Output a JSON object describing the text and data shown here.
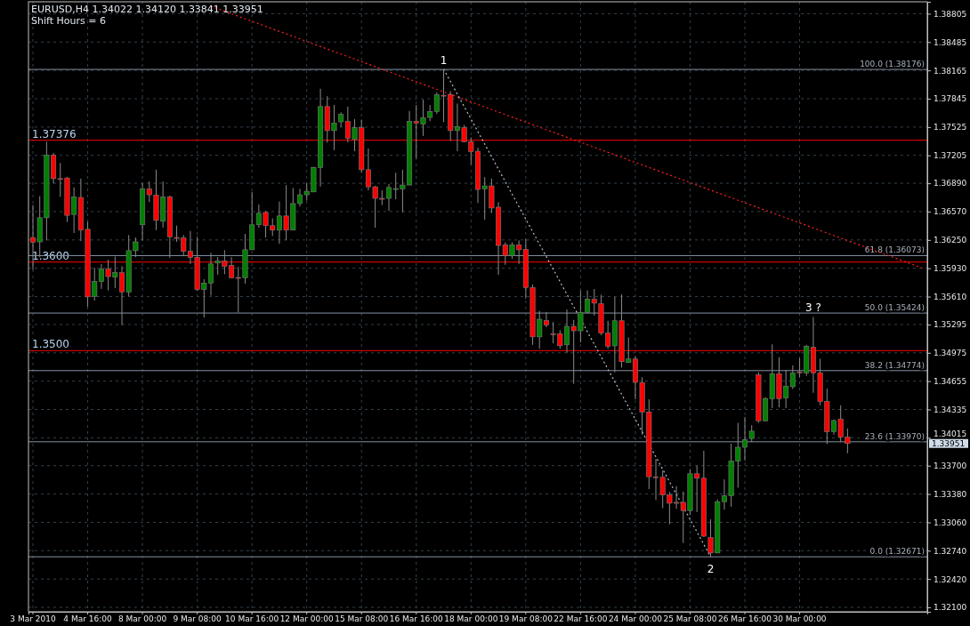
{
  "chart_data": {
    "type": "candlestick",
    "title": "EURUSD,H4  1.34022 1.34120 1.33841 1.33951",
    "subtitle": "Shift Hours = 6",
    "categories": [
      "3 Mar 2010",
      null,
      null,
      null,
      null,
      null,
      null,
      null,
      "4 Mar 16:00",
      null,
      null,
      null,
      null,
      null,
      null,
      null,
      "8 Mar 00:00",
      null,
      null,
      null,
      null,
      null,
      null,
      null,
      "9 Mar 08:00",
      null,
      null,
      null,
      null,
      null,
      null,
      null,
      "10 Mar 16:00",
      null,
      null,
      null,
      null,
      null,
      null,
      null,
      "12 Mar 00:00",
      null,
      null,
      null,
      null,
      null,
      null,
      null,
      "15 Mar 08:00",
      null,
      null,
      null,
      null,
      null,
      null,
      null,
      "16 Mar 16:00",
      null,
      null,
      null,
      null,
      null,
      null,
      null,
      "18 Mar 00:00",
      null,
      null,
      null,
      null,
      null,
      null,
      null,
      "19 Mar 08:00",
      null,
      null,
      null,
      null,
      null,
      null,
      null,
      "22 Mar 16:00",
      null,
      null,
      null,
      null,
      null,
      null,
      null,
      "24 Mar 00:00",
      null,
      null,
      null,
      null,
      null,
      null,
      null,
      "25 Mar 08:00",
      null,
      null,
      null,
      null,
      null,
      null,
      null,
      "26 Mar 16:00",
      null,
      null,
      null,
      null,
      null,
      null,
      null,
      "30 Mar 00:00",
      null,
      null,
      null,
      null,
      null,
      null,
      null,
      null,
      null,
      null,
      null,
      null,
      null,
      null,
      null,
      null,
      null,
      null
    ],
    "ohlc": [
      [
        1.36278,
        1.36644,
        1.35913,
        1.36222
      ],
      [
        1.36228,
        1.36744,
        1.36056,
        1.36501
      ],
      [
        1.36501,
        1.37359,
        1.36245,
        1.37209
      ],
      [
        1.37209,
        1.37232,
        1.36887,
        1.36943
      ],
      [
        1.36943,
        1.37119,
        1.36737,
        1.3694
      ],
      [
        1.3695,
        1.3696,
        1.36454,
        1.36528
      ],
      [
        1.36538,
        1.36843,
        1.36328,
        1.36737
      ],
      [
        1.3673,
        1.36943,
        1.36238,
        1.36361
      ],
      [
        1.36371,
        1.36454,
        1.35497,
        1.35607
      ],
      [
        1.35613,
        1.35936,
        1.35564,
        1.3578
      ],
      [
        1.3578,
        1.35979,
        1.35697,
        1.35923
      ],
      [
        1.35923,
        1.36026,
        1.3568,
        1.35836
      ],
      [
        1.3583,
        1.36062,
        1.35707,
        1.3588
      ],
      [
        1.3588,
        1.35953,
        1.35288,
        1.35663
      ],
      [
        1.35663,
        1.36305,
        1.35613,
        1.36129
      ],
      [
        1.36129,
        1.36278,
        1.36056,
        1.36228
      ],
      [
        1.36421,
        1.36893,
        1.36245,
        1.36827
      ],
      [
        1.36827,
        1.3691,
        1.36677,
        1.3676
      ],
      [
        1.36757,
        1.37043,
        1.36361,
        1.36471
      ],
      [
        1.36461,
        1.3691,
        1.36388,
        1.36737
      ],
      [
        1.36737,
        1.3675,
        1.36046,
        1.36285
      ],
      [
        1.36278,
        1.36411,
        1.36228,
        1.36275
      ],
      [
        1.36272,
        1.36305,
        1.36072,
        1.36122
      ],
      [
        1.36122,
        1.36351,
        1.35979,
        1.36052
      ],
      [
        1.36052,
        1.36285,
        1.35673,
        1.3569
      ],
      [
        1.3569,
        1.35806,
        1.35374,
        1.35763
      ],
      [
        1.35763,
        1.36105,
        1.3562,
        1.35979
      ],
      [
        1.35989,
        1.36056,
        1.35856,
        1.36012
      ],
      [
        1.36012,
        1.36135,
        1.35863,
        1.35953
      ],
      [
        1.35963,
        1.36056,
        1.3582,
        1.35823
      ],
      [
        1.35826,
        1.35946,
        1.35431,
        1.35823
      ],
      [
        1.35823,
        1.36318,
        1.35756,
        1.36139
      ],
      [
        1.36139,
        1.36793,
        1.36139,
        1.36421
      ],
      [
        1.36421,
        1.36651,
        1.36388,
        1.36551
      ],
      [
        1.36561,
        1.36577,
        1.36278,
        1.36411
      ],
      [
        1.36411,
        1.36494,
        1.36295,
        1.36361
      ],
      [
        1.36361,
        1.36684,
        1.36205,
        1.36521
      ],
      [
        1.36521,
        1.3687,
        1.36245,
        1.36361
      ],
      [
        1.36361,
        1.36837,
        1.36361,
        1.36661
      ],
      [
        1.36661,
        1.36827,
        1.36627,
        1.3676
      ],
      [
        1.3676,
        1.36893,
        1.36694,
        1.368
      ],
      [
        1.36793,
        1.37076,
        1.36787,
        1.37069
      ],
      [
        1.37069,
        1.37957,
        1.36853,
        1.37757
      ],
      [
        1.37757,
        1.37874,
        1.37348,
        1.37485
      ],
      [
        1.37485,
        1.37774,
        1.37265,
        1.37568
      ],
      [
        1.37584,
        1.37691,
        1.37525,
        1.37668
      ],
      [
        1.37588,
        1.37757,
        1.37352,
        1.37398
      ],
      [
        1.37385,
        1.37614,
        1.37252,
        1.37518
      ],
      [
        1.37518,
        1.37608,
        1.37009,
        1.37043
      ],
      [
        1.37043,
        1.37282,
        1.3681,
        1.3685
      ],
      [
        1.3685,
        1.3686,
        1.36388,
        1.3672
      ],
      [
        1.3672,
        1.3681,
        1.36644,
        1.36717
      ],
      [
        1.3672,
        1.36883,
        1.36577,
        1.36843
      ],
      [
        1.36827,
        1.37009,
        1.3671,
        1.3683
      ],
      [
        1.36827,
        1.37043,
        1.36561,
        1.3687
      ],
      [
        1.3687,
        1.37707,
        1.3687,
        1.37591
      ],
      [
        1.37588,
        1.37774,
        1.37169,
        1.37568
      ],
      [
        1.37558,
        1.37834,
        1.37425,
        1.37631
      ],
      [
        1.37634,
        1.37774,
        1.37591,
        1.37701
      ],
      [
        1.37701,
        1.37917,
        1.37674,
        1.3789
      ],
      [
        1.37884,
        1.38176,
        1.37581,
        1.3788
      ],
      [
        1.3789,
        1.3793,
        1.37368,
        1.37485
      ],
      [
        1.37485,
        1.37791,
        1.37252,
        1.37531
      ],
      [
        1.37518,
        1.37548,
        1.37352,
        1.37358
      ],
      [
        1.37358,
        1.37408,
        1.37103,
        1.37249
      ],
      [
        1.37252,
        1.37292,
        1.36667,
        1.3682
      ],
      [
        1.36827,
        1.3696,
        1.36478,
        1.3686
      ],
      [
        1.3686,
        1.36943,
        1.36554,
        1.36611
      ],
      [
        1.3662,
        1.36677,
        1.35856,
        1.36188
      ],
      [
        1.36195,
        1.36222,
        1.35969,
        1.36072
      ],
      [
        1.36072,
        1.36222,
        1.36036,
        1.36195
      ],
      [
        1.36195,
        1.36245,
        1.35979,
        1.36139
      ],
      [
        1.36145,
        1.36262,
        1.35587,
        1.35713
      ],
      [
        1.35713,
        1.35746,
        1.35065,
        1.35155
      ],
      [
        1.35155,
        1.35447,
        1.35022,
        1.35354
      ],
      [
        1.35341,
        1.35437,
        1.35264,
        1.35288
      ],
      [
        1.35191,
        1.35324,
        1.35082,
        1.35188
      ],
      [
        1.35191,
        1.35231,
        1.35022,
        1.35055
      ],
      [
        1.35065,
        1.35464,
        1.34975,
        1.35274
      ],
      [
        1.35274,
        1.35347,
        1.34626,
        1.35224
      ],
      [
        1.35224,
        1.3568,
        1.35092,
        1.35431
      ],
      [
        1.35431,
        1.3568,
        1.35424,
        1.3558
      ],
      [
        1.3558,
        1.35696,
        1.35397,
        1.35536
      ],
      [
        1.3553,
        1.3563,
        1.35174,
        1.35197
      ],
      [
        1.35197,
        1.35337,
        1.35021,
        1.35048
      ],
      [
        1.35054,
        1.35606,
        1.34755,
        1.35337
      ],
      [
        1.35337,
        1.35636,
        1.34808,
        1.34875
      ],
      [
        1.34865,
        1.35148,
        1.34865,
        1.34905
      ],
      [
        1.34905,
        1.34938,
        1.3445,
        1.34642
      ],
      [
        1.34639,
        1.34699,
        1.34051,
        1.34307
      ],
      [
        1.34307,
        1.3445,
        1.33436,
        1.33575
      ],
      [
        1.33575,
        1.33775,
        1.33313,
        1.33572
      ],
      [
        1.33569,
        1.33645,
        1.3322,
        1.33369
      ],
      [
        1.33369,
        1.33402,
        1.33037,
        1.33276
      ],
      [
        1.33286,
        1.33469,
        1.33213,
        1.33283
      ],
      [
        1.33286,
        1.33409,
        1.32827,
        1.33193
      ],
      [
        1.33193,
        1.33658,
        1.33143,
        1.33609
      ],
      [
        1.33609,
        1.33702,
        1.33176,
        1.33559
      ],
      [
        1.33559,
        1.33868,
        1.32894,
        1.32904
      ],
      [
        1.32887,
        1.33093,
        1.32671,
        1.32714
      ],
      [
        1.32714,
        1.33319,
        1.32714,
        1.33293
      ],
      [
        1.33293,
        1.33545,
        1.33203,
        1.33359
      ],
      [
        1.33359,
        1.33948,
        1.33236,
        1.33752
      ],
      [
        1.33752,
        1.34184,
        1.33452,
        1.33908
      ],
      [
        1.33908,
        1.3425,
        1.33758,
        1.33994
      ],
      [
        1.34007,
        1.34157,
        1.33967,
        1.3409
      ],
      [
        1.34725,
        1.34755,
        1.34184,
        1.34207
      ],
      [
        1.34207,
        1.34473,
        1.34201,
        1.34459
      ],
      [
        1.34456,
        1.35071,
        1.3435,
        1.34739
      ],
      [
        1.34739,
        1.34925,
        1.3436,
        1.34456
      ],
      [
        1.34466,
        1.34782,
        1.3435,
        1.34599
      ],
      [
        1.34592,
        1.34832,
        1.34566,
        1.34749
      ],
      [
        1.34759,
        1.34915,
        1.34699,
        1.34756
      ],
      [
        1.34749,
        1.35064,
        1.34715,
        1.35048
      ],
      [
        1.35038,
        1.3538,
        1.34523,
        1.34749
      ],
      [
        1.34749,
        1.34908,
        1.34383,
        1.34426
      ],
      [
        1.34426,
        1.34572,
        1.33944,
        1.34084
      ],
      [
        1.34084,
        1.34223,
        1.34051,
        1.3421
      ],
      [
        1.34227,
        1.34383,
        1.33967,
        1.34024
      ],
      [
        1.34022,
        1.3412,
        1.33841,
        1.33951
      ],
      null,
      null,
      null,
      null,
      null,
      null,
      null,
      null,
      null,
      null,
      null
    ],
    "series": [
      {
        "type": "line",
        "color": "#ff2020",
        "line_style": "dotted",
        "values": [
          null,
          null,
          null,
          null,
          null,
          null,
          null,
          null,
          null,
          null,
          null,
          null,
          null,
          null,
          null,
          null,
          null,
          null,
          null,
          null,
          null,
          null,
          null,
          null,
          null,
          null,
          1.3889,
          null,
          null,
          null,
          null,
          null,
          null,
          null,
          null,
          null,
          null,
          null,
          null,
          null,
          null,
          null,
          null,
          null,
          null,
          null,
          null,
          null,
          null,
          null,
          null,
          null,
          null,
          null,
          null,
          null,
          null,
          null,
          null,
          null,
          null,
          null,
          null,
          null,
          null,
          null,
          null,
          null,
          null,
          null,
          null,
          null,
          null,
          null,
          null,
          null,
          null,
          null,
          null,
          null,
          null,
          null,
          null,
          null,
          null,
          null,
          null,
          null,
          null,
          null,
          null,
          null,
          null,
          null,
          null,
          null,
          null,
          null,
          null,
          null,
          null,
          null,
          null,
          null,
          null,
          null,
          null,
          null,
          null,
          null,
          null,
          null,
          null,
          null,
          null,
          null,
          null,
          null,
          null,
          null,
          null,
          null,
          null,
          null,
          null,
          null,
          null,
          null,
          null,
          null,
          1.3593
        ]
      },
      {
        "type": "line",
        "color": "#b8c0cc",
        "line_style": "dotted",
        "values": [
          null,
          null,
          null,
          null,
          null,
          null,
          null,
          null,
          null,
          null,
          null,
          null,
          null,
          null,
          null,
          null,
          null,
          null,
          null,
          null,
          null,
          null,
          null,
          null,
          null,
          null,
          null,
          null,
          null,
          null,
          null,
          null,
          null,
          null,
          null,
          null,
          null,
          null,
          null,
          null,
          null,
          null,
          null,
          null,
          null,
          null,
          null,
          null,
          null,
          null,
          null,
          null,
          null,
          null,
          null,
          null,
          null,
          null,
          null,
          null,
          1.3818,
          null,
          null,
          null,
          null,
          null,
          null,
          null,
          null,
          null,
          null,
          null,
          null,
          null,
          null,
          null,
          null,
          null,
          null,
          null,
          null,
          null,
          null,
          null,
          null,
          null,
          null,
          null,
          null,
          null,
          null,
          null,
          null,
          null,
          null,
          null,
          null,
          null,
          null,
          1.3267,
          null,
          null,
          null,
          null,
          null,
          null,
          null,
          null,
          null,
          null,
          null,
          null,
          null,
          null,
          null,
          null,
          null,
          null,
          null,
          null,
          null,
          null,
          null,
          null,
          null,
          null,
          null,
          null,
          null,
          null,
          null
        ]
      }
    ],
    "ylim": [
      1.3205,
      1.3894
    ],
    "yticks": [
      1.38805,
      1.38485,
      1.38165,
      1.37845,
      1.37525,
      1.37205,
      {
        "value": 1.3689,
        "label": "1.36890"
      },
      {
        "value": 1.3657,
        "label": "1.36570"
      },
      {
        "value": 1.3625,
        "label": "1.36250"
      },
      {
        "value": 1.3593,
        "label": "1.35930"
      },
      {
        "value": 1.3561,
        "label": "1.35610"
      },
      1.35295,
      1.34975,
      1.34655,
      1.34335,
      1.34015,
      {
        "value": 1.337,
        "label": "1.33700"
      },
      {
        "value": 1.3338,
        "label": "1.33380"
      },
      {
        "value": 1.3306,
        "label": "1.33060"
      },
      {
        "value": 1.3274,
        "label": "1.32740"
      },
      {
        "value": 1.3242,
        "label": "1.32420"
      },
      {
        "value": 1.321,
        "label": "1.32100"
      }
    ],
    "grid": true,
    "ref_lines": [
      {
        "axis": "y",
        "value": 1.37376,
        "label": "1.37376",
        "color": "#ff0000"
      },
      {
        "axis": "y",
        "value": 1.36,
        "label": "1.3600",
        "color": "#ff0000"
      },
      {
        "axis": "y",
        "value": 1.35,
        "label": "1.3500",
        "color": "#ff0000"
      },
      {
        "axis": "y",
        "value": 1.38176,
        "label": "100.0 (1.38176)"
      },
      {
        "axis": "y",
        "value": 1.36073,
        "label": "61.8 (1.36073)"
      },
      {
        "axis": "y",
        "value": 1.35424,
        "label": "50.0 (1.35424)"
      },
      {
        "axis": "y",
        "value": 1.34774,
        "label": "38.2 (1.34774)"
      },
      {
        "axis": "y",
        "value": 1.3397,
        "label": "23.6 (1.33970)"
      },
      {
        "axis": "y",
        "value": 1.32671,
        "label": "0.0 (1.32671)"
      }
    ],
    "annotations": [
      {
        "text": "1",
        "y": 1.38176
      },
      {
        "text": "2",
        "y": 1.32671
      },
      {
        "text": "3 ?",
        "y": 1.3538
      },
      "1.33951"
    ]
  }
}
